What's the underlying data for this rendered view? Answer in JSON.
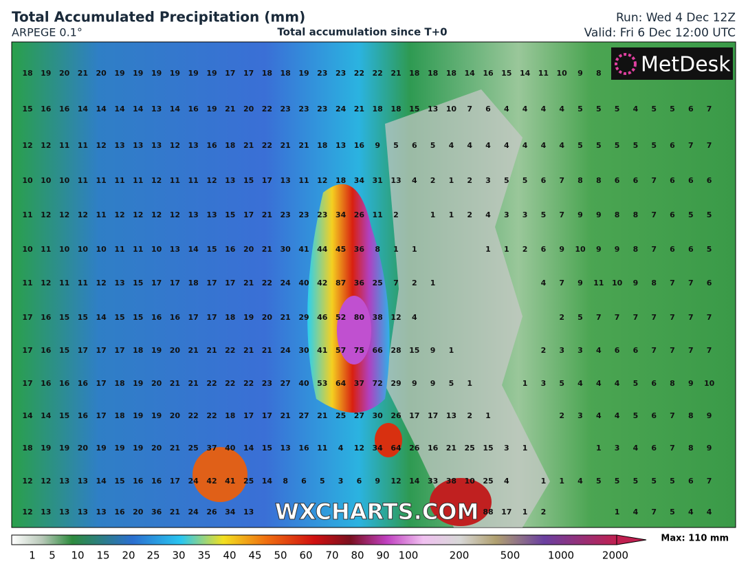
{
  "header": {
    "title": "Total Accumulated Precipitation (mm)",
    "model": "ARPEGE 0.1°",
    "subtitle": "Total accumulation since T+0",
    "run": "Run: Wed 4 Dec 12Z",
    "valid": "Valid: Fri 6 Dec 12:00 UTC"
  },
  "logo": "MetDesk",
  "watermark": "WXCHARTS.COM",
  "grid": [
    [
      18,
      19,
      20,
      21,
      20,
      19,
      19,
      19,
      19,
      19,
      19,
      17,
      17,
      18,
      18,
      19,
      23,
      23,
      22,
      22,
      21,
      18,
      18,
      18,
      14,
      16,
      15,
      14,
      11,
      10,
      9,
      8,
      null,
      null,
      null,
      null,
      null,
      null
    ],
    [
      15,
      16,
      16,
      14,
      14,
      14,
      14,
      13,
      14,
      16,
      19,
      21,
      20,
      22,
      23,
      23,
      23,
      24,
      21,
      18,
      18,
      15,
      13,
      10,
      7,
      6,
      4,
      4,
      4,
      4,
      5,
      5,
      5,
      4,
      5,
      5,
      6,
      7
    ],
    [
      12,
      12,
      11,
      11,
      12,
      13,
      13,
      13,
      12,
      13,
      16,
      18,
      21,
      22,
      21,
      21,
      18,
      13,
      16,
      9,
      5,
      6,
      5,
      4,
      4,
      4,
      4,
      4,
      4,
      4,
      5,
      5,
      5,
      5,
      5,
      6,
      7,
      7
    ],
    [
      10,
      10,
      10,
      11,
      11,
      11,
      11,
      12,
      11,
      11,
      12,
      13,
      15,
      17,
      13,
      11,
      12,
      18,
      34,
      31,
      13,
      4,
      2,
      1,
      2,
      3,
      5,
      5,
      6,
      7,
      8,
      8,
      6,
      6,
      7,
      6,
      6,
      6
    ],
    [
      11,
      12,
      12,
      12,
      11,
      12,
      12,
      12,
      12,
      13,
      13,
      15,
      17,
      21,
      23,
      23,
      23,
      34,
      26,
      11,
      2,
      null,
      1,
      1,
      2,
      4,
      3,
      3,
      5,
      7,
      9,
      9,
      8,
      8,
      7,
      6,
      5,
      5
    ],
    [
      10,
      11,
      10,
      10,
      10,
      11,
      11,
      10,
      13,
      14,
      15,
      16,
      20,
      21,
      30,
      41,
      44,
      45,
      36,
      8,
      1,
      1,
      null,
      null,
      null,
      1,
      1,
      2,
      6,
      9,
      10,
      9,
      9,
      8,
      7,
      6,
      6,
      5
    ],
    [
      11,
      12,
      11,
      11,
      12,
      13,
      15,
      17,
      17,
      18,
      17,
      17,
      21,
      22,
      24,
      40,
      42,
      87,
      36,
      25,
      7,
      2,
      1,
      null,
      null,
      null,
      null,
      null,
      4,
      7,
      9,
      11,
      10,
      9,
      8,
      7,
      7,
      6
    ],
    [
      17,
      16,
      15,
      15,
      14,
      15,
      15,
      16,
      16,
      17,
      17,
      18,
      19,
      20,
      21,
      29,
      46,
      52,
      80,
      38,
      12,
      4,
      null,
      null,
      null,
      null,
      null,
      null,
      null,
      2,
      5,
      7,
      7,
      7,
      7,
      7,
      7,
      7
    ],
    [
      17,
      16,
      15,
      17,
      17,
      17,
      18,
      19,
      20,
      21,
      21,
      22,
      21,
      21,
      24,
      30,
      41,
      57,
      75,
      66,
      28,
      15,
      9,
      1,
      null,
      null,
      null,
      null,
      2,
      3,
      3,
      4,
      6,
      6,
      7,
      7,
      7,
      7
    ],
    [
      17,
      16,
      16,
      16,
      17,
      18,
      19,
      20,
      21,
      21,
      22,
      22,
      22,
      23,
      27,
      40,
      53,
      64,
      37,
      72,
      29,
      9,
      9,
      5,
      1,
      null,
      null,
      1,
      3,
      5,
      4,
      4,
      4,
      5,
      6,
      8,
      9,
      10
    ],
    [
      14,
      14,
      15,
      16,
      17,
      18,
      19,
      19,
      20,
      22,
      22,
      18,
      17,
      17,
      21,
      27,
      21,
      25,
      27,
      30,
      26,
      17,
      17,
      13,
      2,
      1,
      null,
      null,
      null,
      2,
      3,
      4,
      4,
      5,
      6,
      7,
      8,
      9
    ],
    [
      18,
      19,
      19,
      20,
      19,
      19,
      19,
      20,
      21,
      25,
      37,
      40,
      14,
      15,
      13,
      16,
      11,
      4,
      12,
      34,
      64,
      26,
      16,
      21,
      25,
      15,
      3,
      1,
      null,
      null,
      null,
      1,
      3,
      4,
      6,
      7,
      8,
      9
    ],
    [
      12,
      12,
      13,
      13,
      14,
      15,
      16,
      16,
      17,
      24,
      42,
      41,
      25,
      14,
      8,
      6,
      5,
      3,
      6,
      9,
      12,
      14,
      33,
      38,
      10,
      25,
      4,
      null,
      1,
      1,
      4,
      5,
      5,
      5,
      5,
      5,
      6,
      7
    ],
    [
      12,
      13,
      13,
      13,
      13,
      16,
      20,
      36,
      21,
      24,
      26,
      34,
      13,
      null,
      null,
      null,
      null,
      null,
      null,
      null,
      null,
      null,
      null,
      null,
      null,
      88,
      17,
      1,
      2,
      null,
      null,
      null,
      1,
      4,
      7,
      5,
      4,
      4
    ]
  ],
  "colorbar": {
    "labels": [
      "1",
      "5",
      "10",
      "15",
      "20",
      "25",
      "30",
      "35",
      "40",
      "45",
      "50",
      "60",
      "70",
      "80",
      "90",
      "100",
      "200",
      "500",
      "1000",
      "2000"
    ],
    "max": "Max: 110 mm"
  }
}
